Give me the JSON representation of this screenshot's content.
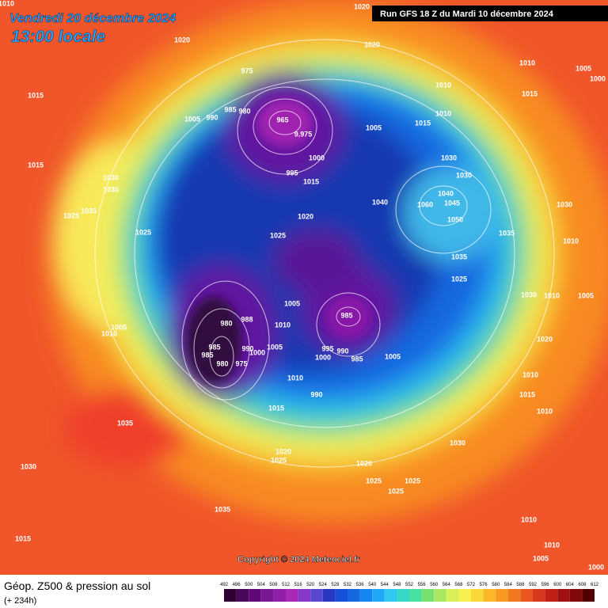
{
  "header": {
    "date": "Vendredi 20 décembre 2024",
    "time": "13:00 locale",
    "run": "Run GFS 18 Z du Mardi 10 décembre 2024"
  },
  "copyright": "Copyright © 2024 Meteociel.fr",
  "footer": {
    "title": "Géop. Z500 & pression au sol",
    "subtitle": "(+ 234h)"
  },
  "scale": {
    "labels": [
      "492",
      "496",
      "500",
      "504",
      "508",
      "512",
      "516",
      "520",
      "524",
      "528",
      "532",
      "536",
      "540",
      "544",
      "548",
      "552",
      "556",
      "560",
      "564",
      "568",
      "572",
      "576",
      "580",
      "584",
      "588",
      "592",
      "596",
      "600",
      "604",
      "608",
      "612"
    ]
  },
  "isobars": [
    "1010",
    "1020",
    "1020",
    "1020",
    "1015",
    "1015",
    "975",
    "985",
    "980",
    "1005",
    "990",
    "965",
    "9.975",
    "1005",
    "1015",
    "1010",
    "1010",
    "1010",
    "1005",
    "1000",
    "1015",
    "1000",
    "995",
    "1015",
    "1030",
    "1030",
    "1040",
    "1040",
    "1045",
    "1050",
    "1060",
    "1030",
    "1035",
    "1010",
    "1035",
    "1025",
    "1030",
    "1035",
    "1035",
    "1025",
    "1025",
    "1020",
    "1025",
    "1005",
    "1030",
    "1010",
    "1005",
    "985",
    "980",
    "988",
    "1010",
    "1005",
    "1010",
    "995",
    "990",
    "1000",
    "985",
    "1005",
    "985",
    "985",
    "990",
    "1000",
    "1005",
    "980",
    "975",
    "1020",
    "1010",
    "1010",
    "990",
    "1015",
    "1015",
    "1010",
    "1035",
    "1020",
    "1030",
    "1025",
    "1020",
    "1025",
    "1025",
    "1025",
    "1030",
    "1015",
    "1035",
    "1010",
    "1010",
    "1005",
    "1000"
  ]
}
